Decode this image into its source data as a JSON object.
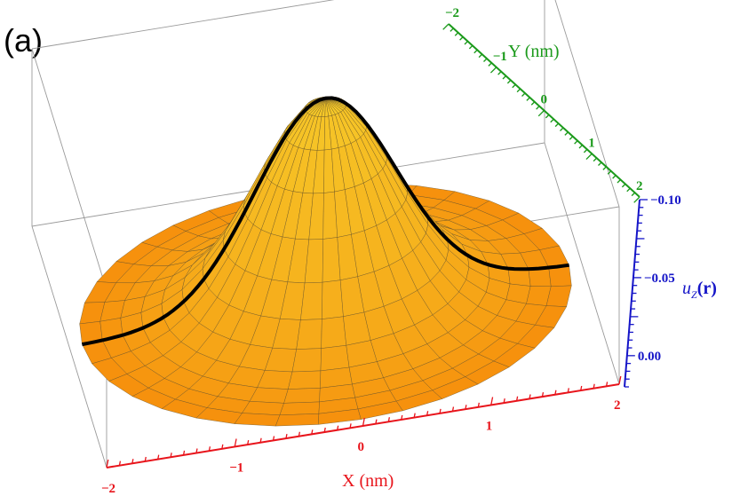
{
  "panel_label": "(a)",
  "chart_data": {
    "type": "surface3d",
    "title": "",
    "function": "z = -0.12 * exp(-(x^2+y^2)/0.6) + 0.02 * (1 - exp(-(x^2+y^2)/0.6))",
    "x": {
      "label": "X (nm)",
      "range": [
        -2,
        2
      ],
      "ticks": [
        {
          "value": -2,
          "label": "−2"
        },
        {
          "value": -1,
          "label": "−1"
        },
        {
          "value": 0,
          "label": "0"
        },
        {
          "value": 1,
          "label": "1"
        },
        {
          "value": 2,
          "label": "2"
        }
      ],
      "color": "#e8141b"
    },
    "y": {
      "label": "Y (nm)",
      "range": [
        -2,
        2
      ],
      "ticks": [
        {
          "value": -2,
          "label": "−2"
        },
        {
          "value": -1,
          "label": "−1"
        },
        {
          "value": 0,
          "label": "0"
        },
        {
          "value": 1,
          "label": "1"
        },
        {
          "value": 2,
          "label": "2"
        }
      ],
      "color": "#1b9a1b"
    },
    "z": {
      "label_main": "u",
      "label_sub": "Z",
      "label_arg": "(r)",
      "range": [
        0.02,
        -0.1
      ],
      "ticks": [
        {
          "value": 0.0,
          "label": "0.00"
        },
        {
          "value": -0.05,
          "label": "−0.05"
        },
        {
          "value": -0.1,
          "label": "−0.10"
        }
      ],
      "color": "#1515c8"
    },
    "domain": "disk",
    "domain_radius": 1.9,
    "peak": {
      "x": 0,
      "y": 0,
      "z": -0.12
    },
    "rim_level": 0.02,
    "surface_color": "#f5b400",
    "highlight_curve": "y = 0 cross-section"
  }
}
